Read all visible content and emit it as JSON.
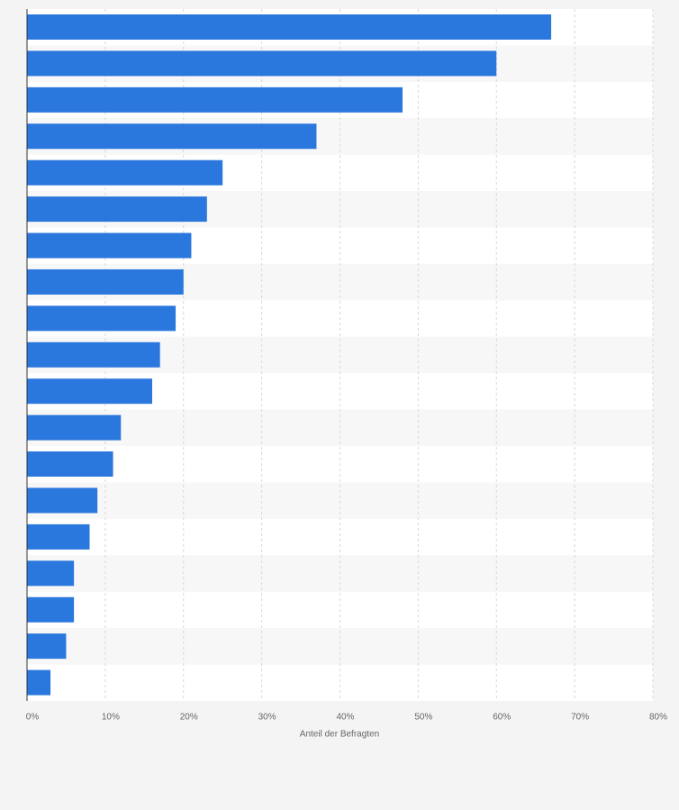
{
  "chart_data": {
    "type": "bar",
    "orientation": "horizontal",
    "x_label": "Anteil der Befragten",
    "categories": [
      null,
      null,
      null,
      null,
      null,
      null,
      null,
      null,
      null,
      null,
      null,
      null,
      null,
      null,
      null,
      null,
      null,
      null,
      null
    ],
    "values": [
      67,
      60,
      48,
      37,
      25,
      23,
      21,
      20,
      19,
      17,
      16,
      12,
      11,
      9,
      8,
      6,
      6,
      5,
      3
    ],
    "color": "#2a77dd",
    "xlim": [
      0,
      80
    ],
    "xticks": [
      {
        "value": 0,
        "label": "0%"
      },
      {
        "value": 10,
        "label": "10%"
      },
      {
        "value": 20,
        "label": "20%"
      },
      {
        "value": 30,
        "label": "30%"
      },
      {
        "value": 40,
        "label": "40%"
      },
      {
        "value": 50,
        "label": "50%"
      },
      {
        "value": 60,
        "label": "60%"
      },
      {
        "value": 70,
        "label": "70%"
      },
      {
        "value": 80,
        "label": "80%"
      }
    ],
    "grid": true
  }
}
